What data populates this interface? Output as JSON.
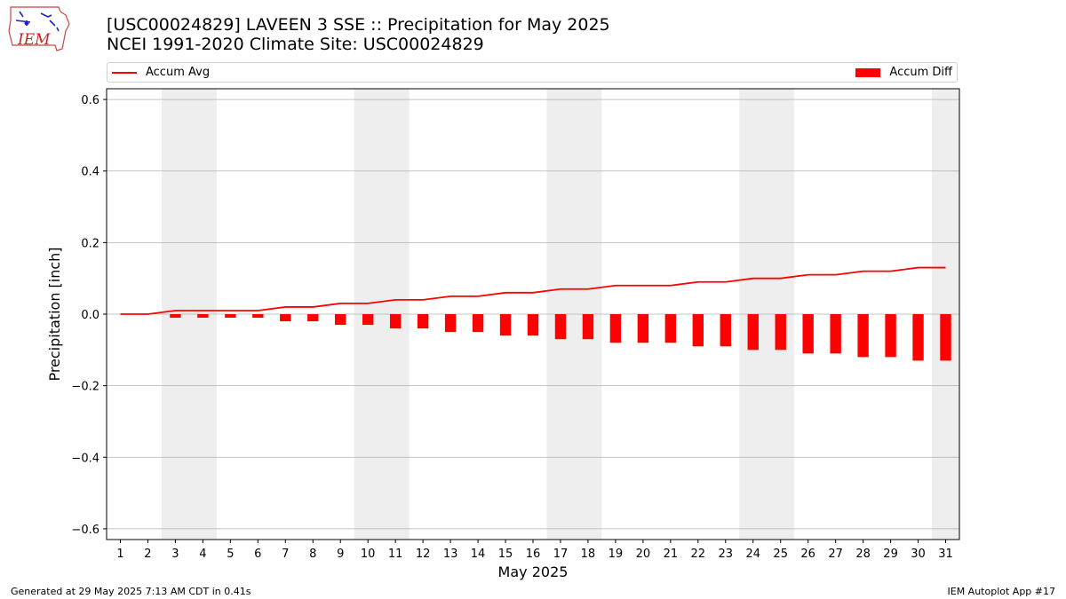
{
  "header": {
    "title_line1": "[USC00024829] LAVEEN 3 SSE :: Precipitation for May 2025",
    "title_line2": "NCEI 1991-2020 Climate Site: USC00024829",
    "logo_text": "IEM"
  },
  "legend": {
    "line_label": "Accum Avg",
    "bar_label": "Accum Diff"
  },
  "footer": {
    "left": "Generated at 29 May 2025 7:13 AM CDT in 0.41s",
    "right": "IEM Autoplot App #17"
  },
  "colors": {
    "series": "#ff0000",
    "weekend_shade": "#eeeeee",
    "grid": "#b0b0b0"
  },
  "chart_data": {
    "type": "bar",
    "xlabel": "May 2025",
    "ylabel": "Precipitation [inch]",
    "ylim": [
      -0.63,
      0.63
    ],
    "yticks": [
      -0.6,
      -0.4,
      -0.2,
      0.0,
      0.2,
      0.4,
      0.6
    ],
    "ytick_labels": [
      "−0.6",
      "−0.4",
      "−0.2",
      "0.0",
      "0.2",
      "0.4",
      "0.6"
    ],
    "xlim": [
      0.5,
      31.5
    ],
    "x": [
      1,
      2,
      3,
      4,
      5,
      6,
      7,
      8,
      9,
      10,
      11,
      12,
      13,
      14,
      15,
      16,
      17,
      18,
      19,
      20,
      21,
      22,
      23,
      24,
      25,
      26,
      27,
      28,
      29,
      30,
      31
    ],
    "grid": "horizontal",
    "legend_placement": "top (above plot)",
    "weekend_shaded_days": [
      [
        3,
        4
      ],
      [
        10,
        11
      ],
      [
        17,
        18
      ],
      [
        24,
        25
      ],
      [
        31,
        31
      ]
    ],
    "series": [
      {
        "name": "Accum Avg",
        "type": "line",
        "values": [
          0.0,
          0.0,
          0.01,
          0.01,
          0.01,
          0.01,
          0.02,
          0.02,
          0.03,
          0.03,
          0.04,
          0.04,
          0.05,
          0.05,
          0.06,
          0.06,
          0.07,
          0.07,
          0.08,
          0.08,
          0.08,
          0.09,
          0.09,
          0.1,
          0.1,
          0.11,
          0.11,
          0.12,
          0.12,
          0.13,
          0.13
        ]
      },
      {
        "name": "Accum Diff",
        "type": "bar",
        "values": [
          0.0,
          0.0,
          -0.01,
          -0.01,
          -0.01,
          -0.01,
          -0.02,
          -0.02,
          -0.03,
          -0.03,
          -0.04,
          -0.04,
          -0.05,
          -0.05,
          -0.06,
          -0.06,
          -0.07,
          -0.07,
          -0.08,
          -0.08,
          -0.08,
          -0.09,
          -0.09,
          -0.1,
          -0.1,
          -0.11,
          -0.11,
          -0.12,
          -0.12,
          -0.13,
          -0.13
        ]
      }
    ]
  }
}
